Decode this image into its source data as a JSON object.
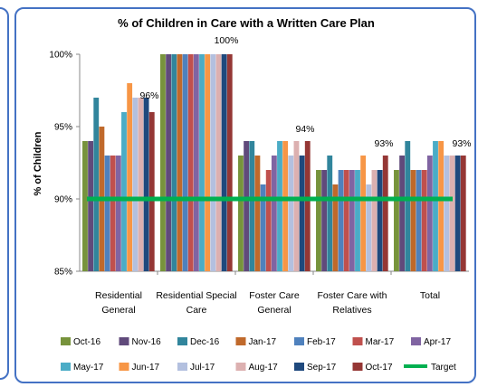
{
  "chart_data": {
    "type": "bar",
    "title": "% of Children in Care with a Written Care Plan",
    "ylabel": "% of Children",
    "ylim": [
      85,
      100
    ],
    "yticks": [
      "85%",
      "90%",
      "95%",
      "100%"
    ],
    "categories": [
      [
        "Residential",
        "General"
      ],
      [
        "Residential Special",
        "Care"
      ],
      [
        "Foster Care",
        "General"
      ],
      [
        "Foster Care with",
        "Relatives"
      ],
      [
        "Total"
      ]
    ],
    "series": [
      {
        "name": "Oct-16",
        "color": "#77933c",
        "values": [
          94,
          100,
          93,
          92,
          92
        ]
      },
      {
        "name": "Nov-16",
        "color": "#604a7b",
        "values": [
          94,
          100,
          94,
          92,
          93
        ]
      },
      {
        "name": "Dec-16",
        "color": "#31859c",
        "values": [
          97,
          100,
          94,
          93,
          94
        ]
      },
      {
        "name": "Jan-17",
        "color": "#c0692b",
        "values": [
          95,
          100,
          93,
          91,
          92
        ]
      },
      {
        "name": "Feb-17",
        "color": "#4f81bd",
        "values": [
          93,
          100,
          91,
          92,
          92
        ]
      },
      {
        "name": "Mar-17",
        "color": "#c0504d",
        "values": [
          93,
          100,
          92,
          92,
          92
        ]
      },
      {
        "name": "Apr-17",
        "color": "#8064a2",
        "values": [
          93,
          100,
          93,
          92,
          93
        ]
      },
      {
        "name": "May-17",
        "color": "#4bacc6",
        "values": [
          96,
          100,
          94,
          92,
          94
        ]
      },
      {
        "name": "Jun-17",
        "color": "#f79646",
        "values": [
          98,
          100,
          94,
          93,
          94
        ]
      },
      {
        "name": "Jul-17",
        "color": "#b3c0df",
        "values": [
          97,
          100,
          93,
          91,
          93
        ]
      },
      {
        "name": "Aug-17",
        "color": "#dcb0b0",
        "values": [
          97,
          100,
          94,
          92,
          93
        ]
      },
      {
        "name": "Sep-17",
        "color": "#1f497d",
        "values": [
          97,
          100,
          93,
          92,
          93
        ]
      },
      {
        "name": "Oct-17",
        "color": "#953735",
        "values": [
          96,
          100,
          94,
          93,
          93
        ]
      }
    ],
    "target": {
      "name": "Target",
      "color": "#00b050",
      "value": 90
    },
    "data_labels": [
      "96%",
      "100%",
      "94%",
      "93%",
      "93%"
    ],
    "legend": "bottom",
    "grid": false
  }
}
